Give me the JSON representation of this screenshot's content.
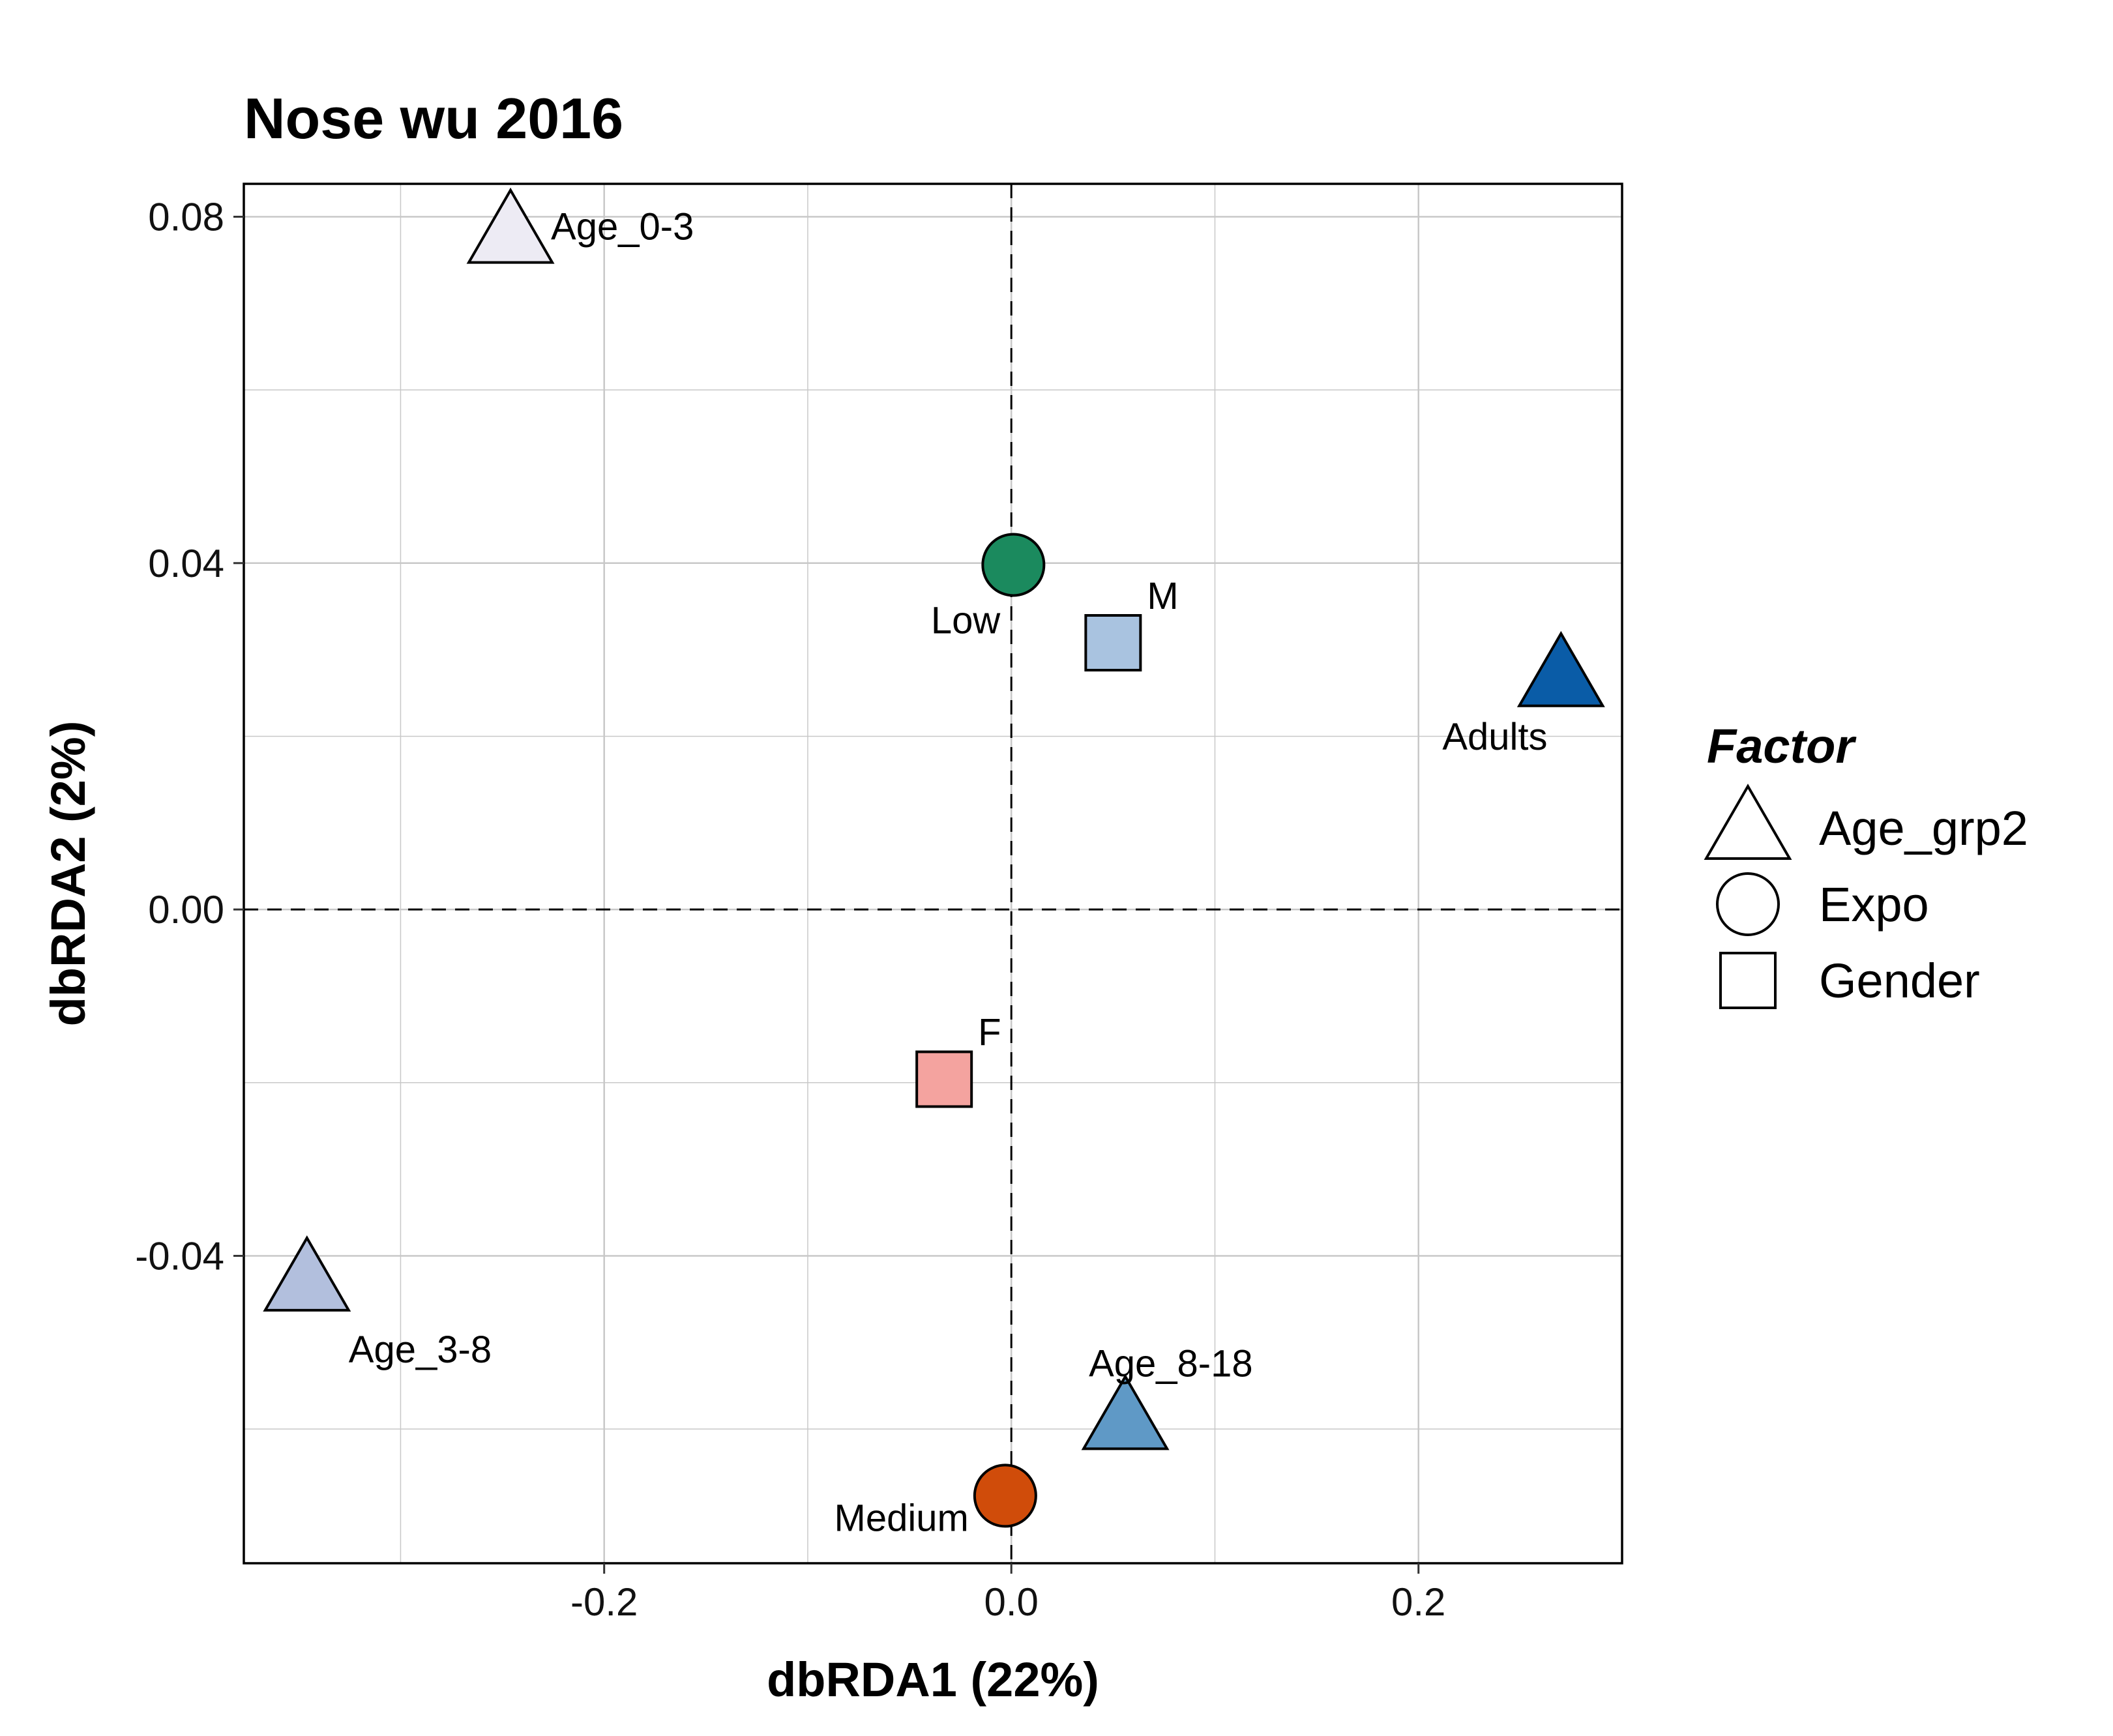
{
  "chart_data": {
    "type": "scatter",
    "title": "Nose wu 2016",
    "xlabel": "dbRDA1 (22%)",
    "ylabel": "dbRDA2 (2%)",
    "xlim": [
      -0.377,
      0.3
    ],
    "ylim": [
      -0.0755,
      0.0838
    ],
    "x_ticks": [
      -0.2,
      0.0,
      0.2
    ],
    "x_tick_labels": [
      "-0.2",
      "0.0",
      "0.2"
    ],
    "y_ticks": [
      -0.04,
      0.0,
      0.04,
      0.08
    ],
    "y_tick_labels": [
      "-0.04",
      "0.00",
      "0.04",
      "0.08"
    ],
    "x_minor_gridlines": [
      -0.3,
      -0.1,
      0.1
    ],
    "y_minor_gridlines": [
      -0.06,
      -0.02,
      0.02,
      0.06
    ],
    "grid": true,
    "reference_lines": {
      "x": 0,
      "y": 0,
      "style": "dashed"
    },
    "legend": {
      "title": "Factor",
      "placement": "right",
      "entries": [
        {
          "label": "Age_grp2",
          "shape": "triangle"
        },
        {
          "label": "Expo",
          "shape": "circle"
        },
        {
          "label": "Gender",
          "shape": "square"
        }
      ]
    },
    "points": [
      {
        "label": "Age_0-3",
        "factor": "Age_grp2",
        "shape": "triangle",
        "x": -0.246,
        "y": 0.0775,
        "color": "#edebf4",
        "label_anchor": "right"
      },
      {
        "label": "Age_3-8",
        "factor": "Age_grp2",
        "shape": "triangle",
        "x": -0.346,
        "y": -0.0435,
        "color": "#b2bfdd",
        "label_anchor": "lower-right"
      },
      {
        "label": "Age_8-18",
        "factor": "Age_grp2",
        "shape": "triangle",
        "x": 0.056,
        "y": -0.0595,
        "color": "#5f99c6",
        "label_anchor": "above"
      },
      {
        "label": "Adults",
        "factor": "Age_grp2",
        "shape": "triangle",
        "x": 0.27,
        "y": 0.0263,
        "color": "#0a5ca7",
        "label_anchor": "lower-left"
      },
      {
        "label": "Low",
        "factor": "Expo",
        "shape": "circle",
        "x": 0.001,
        "y": 0.0398,
        "color": "#1b8a5e",
        "label_anchor": "lower-left"
      },
      {
        "label": "Medium",
        "factor": "Expo",
        "shape": "circle",
        "x": -0.003,
        "y": -0.0677,
        "color": "#d04c0a",
        "label_anchor": "lower-left"
      },
      {
        "label": "M",
        "factor": "Gender",
        "shape": "square",
        "x": 0.05,
        "y": 0.0308,
        "color": "#a9c3e0",
        "label_anchor": "upper-right"
      },
      {
        "label": "F",
        "factor": "Gender",
        "shape": "square",
        "x": -0.033,
        "y": -0.0196,
        "color": "#f4a39f",
        "label_anchor": "upper-right"
      }
    ]
  }
}
